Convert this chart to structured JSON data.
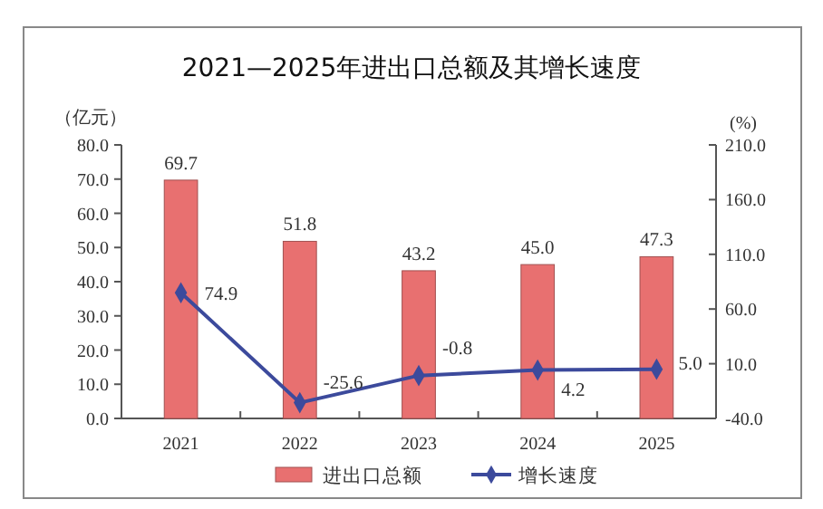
{
  "chart_data": {
    "type": "bar",
    "title": "2021—2025年进出口总额及其增长速度",
    "ylabel": "（亿元）",
    "y2label": "(%)",
    "categories": [
      "2021",
      "2022",
      "2023",
      "2024",
      "2025"
    ],
    "series": [
      {
        "name": "进出口总额",
        "color": "#e87070",
        "values": [
          69.7,
          51.8,
          43.2,
          45.0,
          47.3
        ],
        "value_labels": [
          "69.7",
          "51.8",
          "43.2",
          "45.0",
          "47.3"
        ]
      },
      {
        "name": "增长速度",
        "type": "line",
        "axis": "y2",
        "color": "#3c4a9c",
        "marker": "diamond",
        "values": [
          74.9,
          -25.6,
          -0.8,
          4.2,
          5.0
        ],
        "value_labels": [
          "74.9",
          "-25.6",
          "-0.8",
          "4.2",
          "5.0"
        ]
      }
    ],
    "ylim": [
      0,
      80
    ],
    "yticks": [
      {
        "value": 0,
        "label": "0.0"
      },
      {
        "value": 10,
        "label": "10.0"
      },
      {
        "value": 20,
        "label": "20.0"
      },
      {
        "value": 30,
        "label": "30.0"
      },
      {
        "value": 40,
        "label": "40.0"
      },
      {
        "value": 50,
        "label": "50.0"
      },
      {
        "value": 60,
        "label": "60.0"
      },
      {
        "value": 70,
        "label": "70.0"
      },
      {
        "value": 80,
        "label": "80.0"
      }
    ],
    "y2lim": [
      -40,
      210
    ],
    "y2ticks": [
      {
        "value": -40,
        "label": "-40.0"
      },
      {
        "value": 10,
        "label": "10.0"
      },
      {
        "value": 60,
        "label": "60.0"
      },
      {
        "value": 110,
        "label": "110.0"
      },
      {
        "value": 160,
        "label": "160.0"
      },
      {
        "value": 210,
        "label": "210.0"
      }
    ],
    "legend": "bottom",
    "grid": false
  }
}
